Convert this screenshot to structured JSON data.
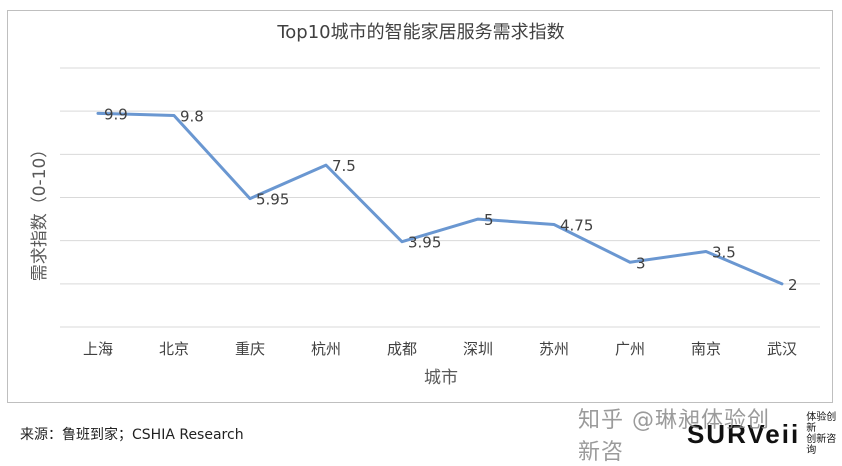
{
  "chart_data": {
    "type": "line",
    "title": "Top10城市的智能家居服务需求指数",
    "xlabel": "城市",
    "ylabel": "需求指数（0-10）",
    "categories": [
      "上海",
      "北京",
      "重庆",
      "杭州",
      "成都",
      "深圳",
      "苏州",
      "广州",
      "南京",
      "武汉"
    ],
    "values": [
      9.9,
      9.8,
      5.95,
      7.5,
      3.95,
      5,
      4.75,
      3,
      3.5,
      2
    ],
    "data_labels": [
      "9.9",
      "9.8",
      "5.95",
      "7.5",
      "3.95",
      "5",
      "4.75",
      "3",
      "3.5",
      "2"
    ],
    "ylim": [
      0,
      12
    ],
    "grid": true,
    "legend": false,
    "color": "#6a97d1"
  },
  "source_note": "来源：鲁班到家；CSHIA Research",
  "watermark": {
    "text": "知乎 @琳昶体验创新咨",
    "brand": "SURVeii",
    "sub_line1": "体验创新",
    "sub_line2": "创新咨询"
  }
}
